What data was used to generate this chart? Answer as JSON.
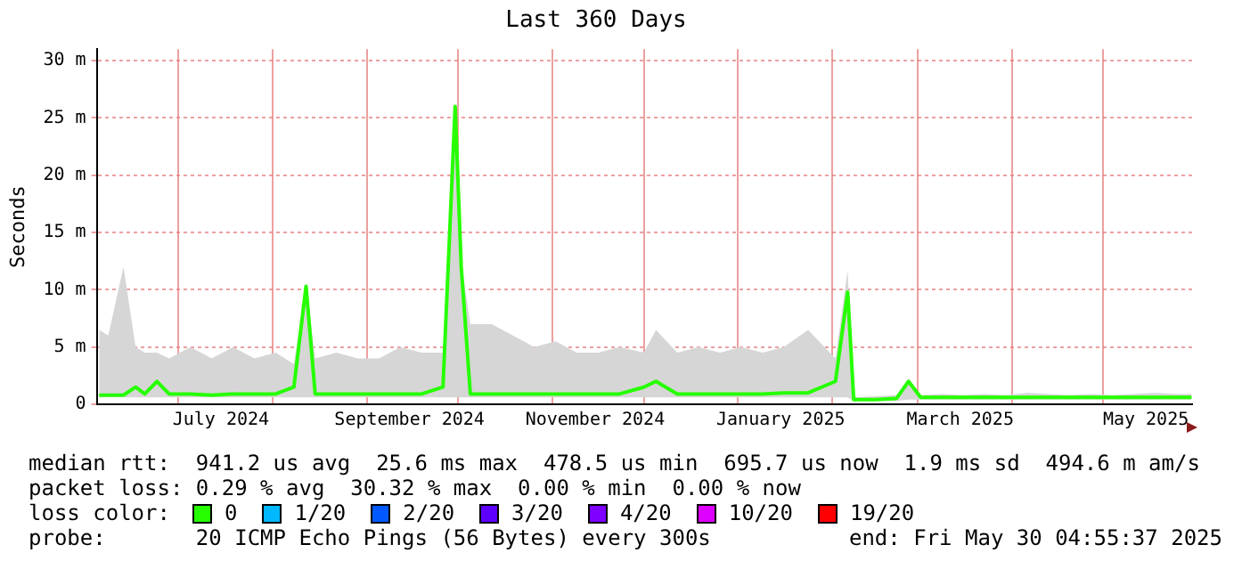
{
  "chart_data": {
    "type": "line",
    "title": "Last 360 Days",
    "ylabel": "Seconds",
    "x": [
      "2024-06-05",
      "2024-06-08",
      "2024-06-13",
      "2024-06-17",
      "2024-06-20",
      "2024-06-24",
      "2024-06-28",
      "2024-07-05",
      "2024-07-12",
      "2024-07-19",
      "2024-07-26",
      "2024-08-02",
      "2024-08-08",
      "2024-08-12",
      "2024-08-15",
      "2024-08-22",
      "2024-08-29",
      "2024-09-05",
      "2024-09-12",
      "2024-09-19",
      "2024-09-26",
      "2024-09-30",
      "2024-10-02",
      "2024-10-05",
      "2024-10-12",
      "2024-10-19",
      "2024-10-26",
      "2024-11-02",
      "2024-11-09",
      "2024-11-16",
      "2024-11-23",
      "2024-12-01",
      "2024-12-05",
      "2024-12-12",
      "2024-12-19",
      "2024-12-26",
      "2025-01-02",
      "2025-01-09",
      "2025-01-16",
      "2025-01-24",
      "2025-02-02",
      "2025-02-06",
      "2025-02-08",
      "2025-02-15",
      "2025-02-22",
      "2025-02-26",
      "2025-03-02",
      "2025-03-09",
      "2025-03-16",
      "2025-03-23",
      "2025-03-30",
      "2025-04-06",
      "2025-04-13",
      "2025-04-20",
      "2025-04-27",
      "2025-05-04",
      "2025-05-11",
      "2025-05-18",
      "2025-05-25",
      "2025-05-30"
    ],
    "series": [
      {
        "name": null,
        "color": "#26ff00",
        "values": [
          0.8,
          0.8,
          0.8,
          1.5,
          0.9,
          2,
          0.9,
          0.9,
          0.8,
          0.9,
          0.9,
          0.9,
          1.5,
          10.3,
          0.9,
          0.9,
          0.9,
          0.9,
          0.9,
          0.9,
          1.5,
          26,
          12,
          0.9,
          0.9,
          0.9,
          0.9,
          0.9,
          0.9,
          0.9,
          0.9,
          1.5,
          2,
          0.9,
          0.9,
          0.9,
          0.9,
          0.9,
          1,
          1,
          2,
          9.8,
          0.4,
          0.4,
          0.5,
          2,
          0.6,
          0.6,
          0.6,
          0.6,
          0.6,
          0.6,
          0.6,
          0.6,
          0.6,
          0.6,
          0.6,
          0.6,
          0.6,
          0.6
        ],
        "lower": [
          0.6,
          0.6,
          0.6,
          0.6,
          0.6,
          0.6,
          0.6,
          0.6,
          0.6,
          0.6,
          0.6,
          0.6,
          0.6,
          0.6,
          0.6,
          0.6,
          0.6,
          0.6,
          0.6,
          0.6,
          0.6,
          0.6,
          0.6,
          0.6,
          0.6,
          0.6,
          0.6,
          0.6,
          0.6,
          0.6,
          0.6,
          0.6,
          0.6,
          0.6,
          0.6,
          0.6,
          0.6,
          0.6,
          0.6,
          0.6,
          0.6,
          0.6,
          0.3,
          0.3,
          0.3,
          0.4,
          0.4,
          0.4,
          0.4,
          0.4,
          0.4,
          0.4,
          0.4,
          0.4,
          0.4,
          0.4,
          0.4,
          0.4,
          0.4,
          0.4
        ],
        "upper": [
          6.5,
          6,
          12,
          5,
          4.5,
          4.5,
          4,
          5,
          4,
          5,
          4,
          4.5,
          3.5,
          10.5,
          4,
          4.5,
          4,
          4,
          5,
          4.5,
          4.5,
          26.2,
          12.5,
          7,
          7,
          6,
          5,
          5.5,
          4.5,
          4.5,
          5,
          4.5,
          6.5,
          4.5,
          5,
          4.5,
          5,
          4.5,
          5,
          6.5,
          4,
          11.7,
          0.6,
          0.7,
          0.8,
          2.2,
          0.8,
          0.9,
          0.8,
          0.9,
          0.8,
          1,
          0.9,
          0.8,
          0.9,
          0.8,
          0.9,
          1,
          0.9,
          0.9
        ]
      }
    ],
    "xlim": [
      "2024-06-04T04:55",
      "2025-05-30T04:55"
    ],
    "xticks": [
      {
        "value": "2024-07-01",
        "label": null
      },
      {
        "value": "2024-07-15",
        "label": "July 2024"
      },
      {
        "value": "2024-08-01",
        "label": null
      },
      {
        "value": "2024-09-01",
        "label": null
      },
      {
        "value": "2024-09-15",
        "label": "September 2024"
      },
      {
        "value": "2024-10-01",
        "label": null
      },
      {
        "value": "2024-11-01",
        "label": null
      },
      {
        "value": "2024-11-15",
        "label": "November 2024"
      },
      {
        "value": "2024-12-01",
        "label": null
      },
      {
        "value": "2025-01-01",
        "label": null
      },
      {
        "value": "2025-01-15",
        "label": "January 2025"
      },
      {
        "value": "2025-02-01",
        "label": null
      },
      {
        "value": "2025-03-01",
        "label": null
      },
      {
        "value": "2025-03-15",
        "label": "March 2025"
      },
      {
        "value": "2025-04-01",
        "label": null
      },
      {
        "value": "2025-05-01",
        "label": null
      },
      {
        "value": "2025-05-15",
        "label": "May 2025"
      }
    ],
    "ylim": [
      0,
      31
    ],
    "yticks": [
      0,
      {
        "value": 5,
        "label": "5 m"
      },
      {
        "value": 10,
        "label": "10 m"
      },
      {
        "value": 15,
        "label": "15 m"
      },
      {
        "value": 20,
        "label": "20 m"
      },
      {
        "value": 25,
        "label": "25 m"
      },
      {
        "value": 30,
        "label": "30 m"
      }
    ],
    "grid": true,
    "legend": false,
    "annotations": [
      "median rtt:  941.2 us avg  25.6 ms max  478.5 us min  695.7 us now  1.9 ms sd  494.6 m am/s",
      "packet loss: 0.29 % avg  30.32 % max  0.00 % min  0.00 % now",
      "loss color:",
      "0",
      "1/20",
      "2/20",
      "3/20",
      "4/20",
      "10/20",
      "19/20",
      "probe:       20 ICMP Echo Pings (56 Bytes) every 300s",
      "end: Fri May 30 04:55:37 2025"
    ]
  }
}
